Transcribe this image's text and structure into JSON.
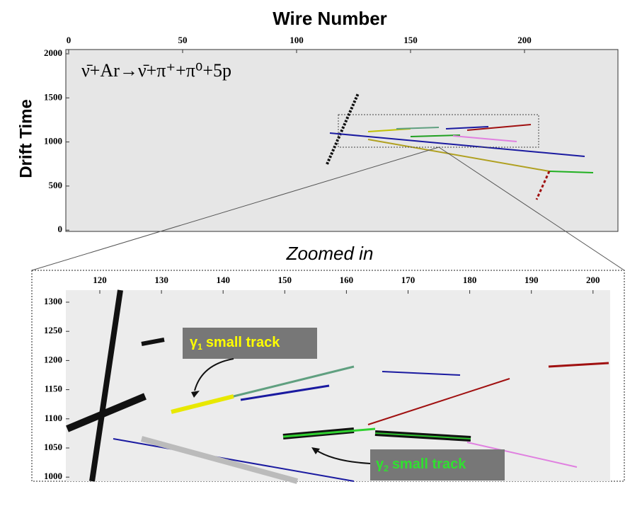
{
  "header": {
    "title": "Wire Number",
    "y_label": "Drift Time",
    "equation": "ν̄+Ar→ν̄+π⁺+π⁰+5p"
  },
  "overview": {
    "xticks": [
      0,
      50,
      100,
      150,
      200
    ],
    "yticks": [
      2000,
      1500,
      1000,
      500,
      0
    ]
  },
  "zoom": {
    "label": "Zoomed in",
    "xticks": [
      120,
      130,
      140,
      150,
      160,
      170,
      180,
      190,
      200
    ],
    "yticks": [
      1300,
      1250,
      1200,
      1150,
      1100,
      1050,
      1000
    ]
  },
  "annotations": [
    {
      "symbol": "γ",
      "subscript": "1",
      "text": "small track"
    },
    {
      "symbol": "γ",
      "subscript": "2",
      "text": "small track"
    }
  ]
}
